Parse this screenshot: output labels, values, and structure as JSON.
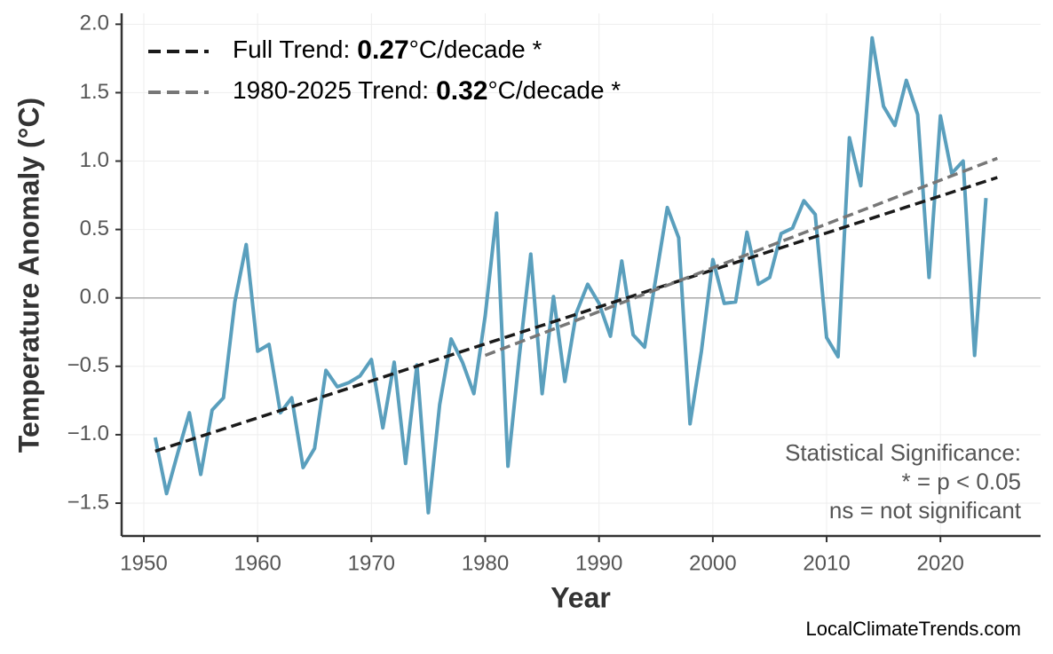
{
  "chart_data": {
    "type": "line",
    "x_label": "Year",
    "y_label": "Temperature Anomaly (°C)",
    "xlim": [
      1948.05,
      2028.8
    ],
    "ylim": [
      -1.74,
      2.08
    ],
    "xticks": [
      1950,
      1960,
      1970,
      1980,
      1990,
      2000,
      2010,
      2020
    ],
    "yticks": [
      {
        "value": -1.5,
        "label": "−1.5"
      },
      {
        "value": -1.0,
        "label": "−1.0"
      },
      {
        "value": -0.5,
        "label": "−0.5"
      },
      {
        "value": 0,
        "label": "0.0"
      },
      0.5,
      {
        "value": 1.0,
        "label": "1.0"
      },
      1.5,
      {
        "value": 2.0,
        "label": "2.0"
      }
    ],
    "grid": true,
    "zero_line": true,
    "legend": "upper left",
    "series": [
      {
        "color": "#5a9fbd",
        "style": "solid",
        "x": [
          1951,
          1952,
          1953,
          1954,
          1955,
          1956,
          1957,
          1958,
          1959,
          1960,
          1961,
          1962,
          1963,
          1964,
          1965,
          1966,
          1967,
          1968,
          1969,
          1970,
          1971,
          1972,
          1973,
          1974,
          1975,
          1976,
          1977,
          1978,
          1979,
          1980,
          1981,
          1982,
          1983,
          1984,
          1985,
          1986,
          1987,
          1988,
          1989,
          1990,
          1991,
          1992,
          1993,
          1994,
          1995,
          1996,
          1997,
          1998,
          1999,
          2000,
          2001,
          2002,
          2003,
          2004,
          2005,
          2006,
          2007,
          2008,
          2009,
          2010,
          2011,
          2012,
          2013,
          2014,
          2015,
          2016,
          2017,
          2018,
          2019,
          2020,
          2021,
          2022,
          2023,
          2024
        ],
        "values": [
          -1.02,
          -1.43,
          -1.13,
          -0.84,
          -1.29,
          -0.82,
          -0.73,
          -0.03,
          0.39,
          -0.39,
          -0.34,
          -0.84,
          -0.73,
          -1.24,
          -1.1,
          -0.53,
          -0.65,
          -0.62,
          -0.57,
          -0.45,
          -0.95,
          -0.47,
          -1.21,
          -0.49,
          -1.57,
          -0.78,
          -0.3,
          -0.47,
          -0.7,
          -0.13,
          0.62,
          -1.23,
          -0.42,
          0.32,
          -0.7,
          0.01,
          -0.61,
          -0.11,
          0.1,
          -0.04,
          -0.28,
          0.27,
          -0.27,
          -0.36,
          0.15,
          0.66,
          0.44,
          -0.92,
          -0.39,
          0.28,
          -0.04,
          -0.03,
          0.48,
          0.1,
          0.15,
          0.47,
          0.51,
          0.71,
          0.61,
          -0.29,
          -0.43,
          1.17,
          0.82,
          1.9,
          1.4,
          1.26,
          1.59,
          1.34,
          0.15,
          1.33,
          0.91,
          1.0,
          -0.42,
          0.73
        ]
      },
      {
        "name": "Full Trend:",
        "trend": 0.27,
        "unit": "°C/decade *",
        "color": "#1a1a1a",
        "style": "dashed",
        "x": [
          1951,
          2025
        ],
        "values": [
          -1.12,
          0.88
        ]
      },
      {
        "name": "1980-2025 Trend:",
        "trend": 0.32,
        "unit": "°C/decade *",
        "color": "#777777",
        "style": "dashed",
        "x": [
          1980,
          2025
        ],
        "values": [
          -0.42,
          1.02
        ]
      }
    ],
    "annotation": [
      "Statistical Significance:",
      "* = p < 0.05",
      "ns = not significant"
    ],
    "watermark": "LocalClimateTrends.com"
  }
}
